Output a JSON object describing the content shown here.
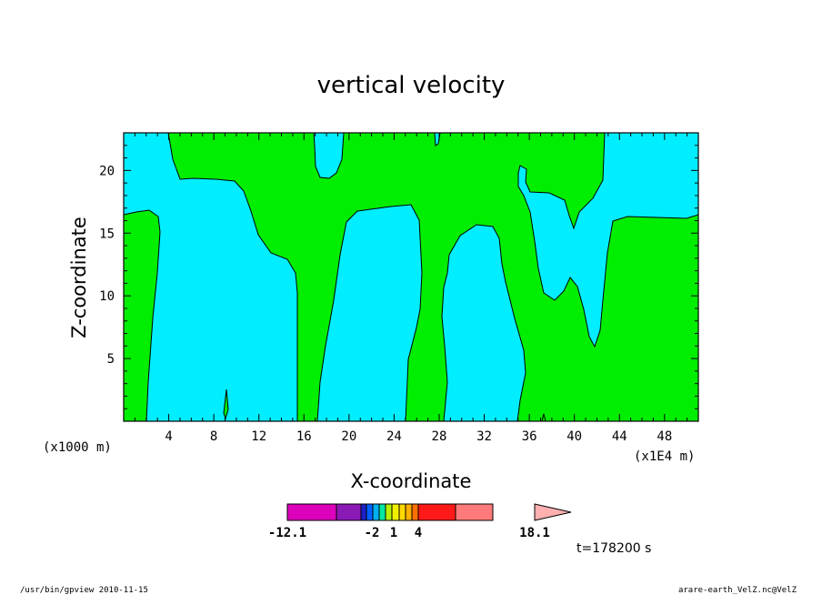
{
  "chart_data": {
    "type": "heatmap",
    "title": "vertical velocity",
    "xlabel": "X-coordinate",
    "ylabel": "Z-coordinate",
    "x_units_label": "(x1000 m)",
    "x_multiplier_label": "(x1E4 m)",
    "x_ticks": [
      "4",
      "8",
      "12",
      "16",
      "20",
      "24",
      "28",
      "32",
      "36",
      "40",
      "44",
      "48"
    ],
    "y_ticks": [
      "5",
      "10",
      "15",
      "20"
    ],
    "xlim": [
      0,
      51
    ],
    "ylim": [
      0,
      23
    ],
    "colorbar": {
      "labels": [
        "-12.1",
        "-2",
        "1",
        "4",
        "18.1"
      ],
      "colors": [
        "#dd00bb",
        "#8a1ab5",
        "#1d20c8",
        "#0060ff",
        "#00b0f0",
        "#00e8a0",
        "#b8f000",
        "#f0f000",
        "#ffd800",
        "#ffb000",
        "#ff7000",
        "#ff1a1a",
        "#ff7a7a",
        "#ffb0b0"
      ]
    },
    "fill_colors": {
      "positive": "#00ee00",
      "negative": "#00eeff"
    },
    "time_label": "t=178200 s"
  },
  "footer": {
    "left": "/usr/bin/gpview   2010-11-15",
    "right": "arare-earth_VelZ.nc@VelZ"
  }
}
